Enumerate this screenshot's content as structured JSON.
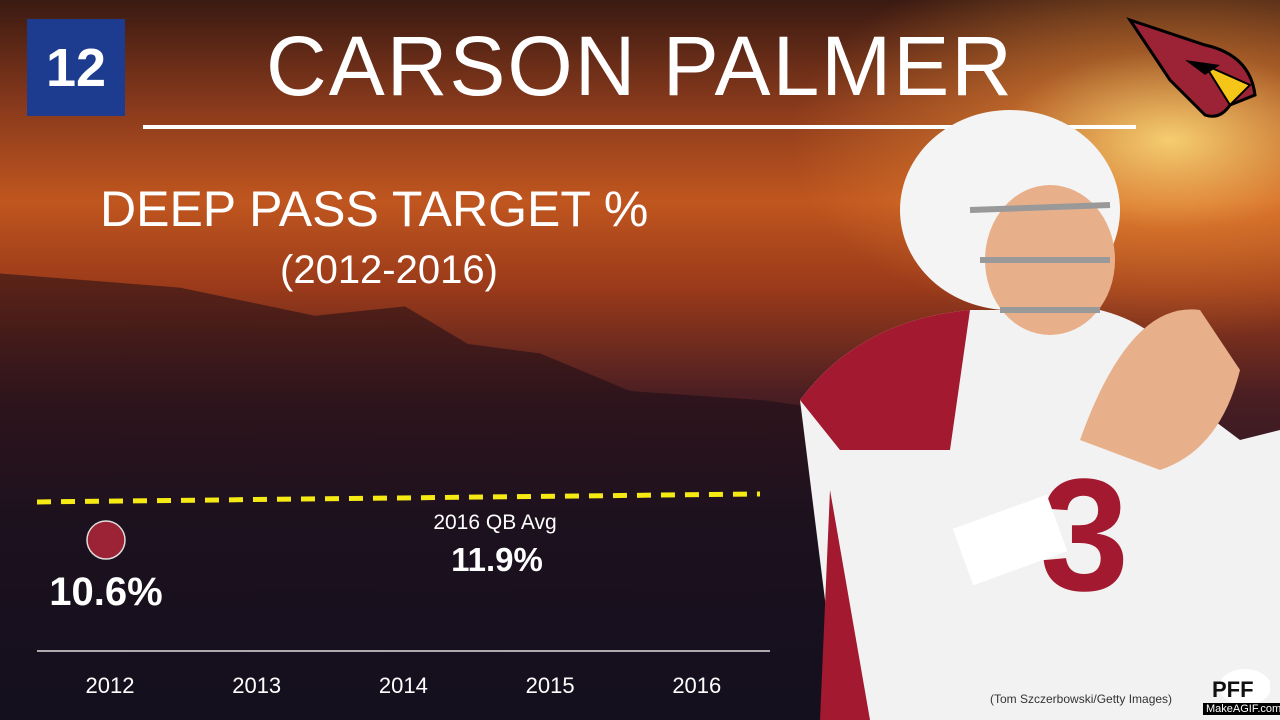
{
  "header": {
    "title": "CARSON PALMER",
    "station_logo": "12",
    "team_logo": "cardinals-logo-icon"
  },
  "chart_data": {
    "type": "scatter",
    "title": "DEEP PASS TARGET %",
    "subtitle": "(2012-2016)",
    "categories": [
      "2012",
      "2013",
      "2014",
      "2015",
      "2016"
    ],
    "series": [
      {
        "values": [
          10.6,
          null,
          null,
          null,
          null
        ],
        "labels": [
          "10.6%",
          "",
          "",
          "",
          ""
        ],
        "color": "#9b2335"
      }
    ],
    "reference_line": {
      "label": "2016 QB Avg",
      "value": 11.9,
      "value_label": "11.9%",
      "color": "#f5ea14",
      "style": "dashed"
    },
    "ylim": [
      7.4,
      13.6
    ],
    "grid": false
  },
  "footer": {
    "credit": "(Tom Szczerbowski/Getty Images)",
    "brand": "PFF",
    "watermark": "MakeAGIF.com"
  }
}
